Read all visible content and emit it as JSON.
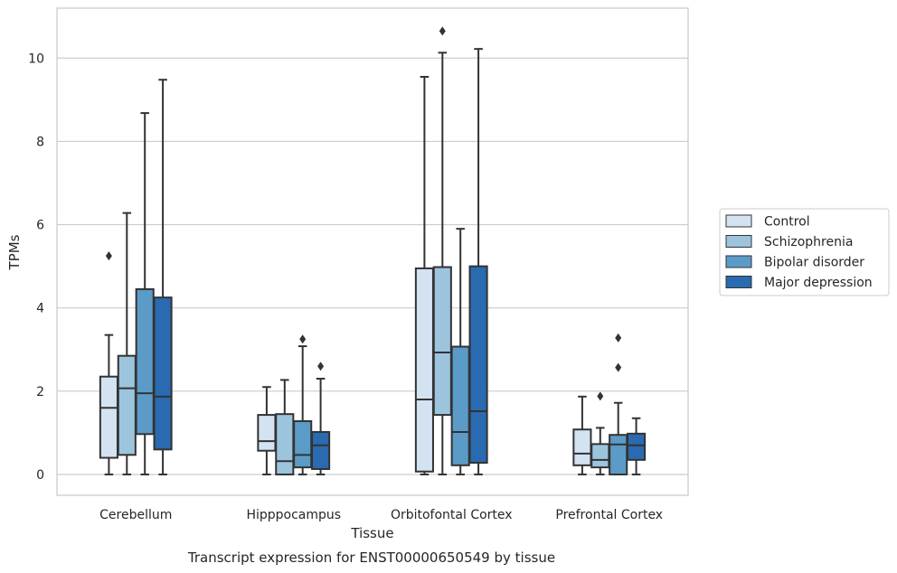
{
  "caption": "Transcript expression for ENST00000650549 by tissue",
  "chart_data": {
    "type": "box",
    "xlabel": "Tissue",
    "ylabel": "TPMs",
    "ylim": [
      -0.5,
      11.2
    ],
    "yticks": [
      0,
      2,
      4,
      6,
      8,
      10
    ],
    "grid": "horizontal",
    "legend_placement": "right",
    "categories": [
      "Cerebellum",
      "Hipppocampus",
      "Orbitofontal Cortex",
      "Prefrontal Cortex"
    ],
    "series": [
      {
        "name": "Control",
        "color": "#d4e3f2",
        "boxes": [
          {
            "whislo": 0,
            "q1": 0.4,
            "median": 1.6,
            "q3": 2.35,
            "whishi": 3.35,
            "fliers": [
              5.25
            ]
          },
          {
            "whislo": 0,
            "q1": 0.57,
            "median": 0.8,
            "q3": 1.43,
            "whishi": 2.1,
            "fliers": []
          },
          {
            "whislo": 0,
            "q1": 0.07,
            "median": 1.8,
            "q3": 4.95,
            "whishi": 9.55,
            "fliers": []
          },
          {
            "whislo": 0,
            "q1": 0.22,
            "median": 0.5,
            "q3": 1.08,
            "whishi": 1.87,
            "fliers": []
          }
        ]
      },
      {
        "name": "Schizophrenia",
        "color": "#9cc4dd",
        "boxes": [
          {
            "whislo": 0,
            "q1": 0.47,
            "median": 2.07,
            "q3": 2.85,
            "whishi": 6.28,
            "fliers": []
          },
          {
            "whislo": 0,
            "q1": 0,
            "median": 0.32,
            "q3": 1.45,
            "whishi": 2.27,
            "fliers": []
          },
          {
            "whislo": 0,
            "q1": 1.43,
            "median": 2.93,
            "q3": 4.98,
            "whishi": 10.13,
            "fliers": [
              10.65
            ]
          },
          {
            "whislo": 0,
            "q1": 0.17,
            "median": 0.35,
            "q3": 0.73,
            "whishi": 1.12,
            "fliers": [
              1.88
            ]
          }
        ]
      },
      {
        "name": "Bipolar disorder",
        "color": "#5b9bc8",
        "boxes": [
          {
            "whislo": 0,
            "q1": 0.97,
            "median": 1.95,
            "q3": 4.45,
            "whishi": 8.68,
            "fliers": []
          },
          {
            "whislo": 0,
            "q1": 0.17,
            "median": 0.47,
            "q3": 1.28,
            "whishi": 3.08,
            "fliers": [
              3.25
            ]
          },
          {
            "whislo": 0,
            "q1": 0.22,
            "median": 1.02,
            "q3": 3.07,
            "whishi": 5.9,
            "fliers": []
          },
          {
            "whislo": 0,
            "q1": 0,
            "median": 0.72,
            "q3": 0.95,
            "whishi": 1.72,
            "fliers": [
              2.57,
              3.28
            ]
          }
        ]
      },
      {
        "name": "Major depression",
        "color": "#2a6ab0",
        "boxes": [
          {
            "whislo": 0,
            "q1": 0.6,
            "median": 1.87,
            "q3": 4.25,
            "whishi": 9.48,
            "fliers": []
          },
          {
            "whislo": 0,
            "q1": 0.13,
            "median": 0.7,
            "q3": 1.02,
            "whishi": 2.3,
            "fliers": [
              2.6
            ]
          },
          {
            "whislo": 0,
            "q1": 0.28,
            "median": 1.52,
            "q3": 5.0,
            "whishi": 10.22,
            "fliers": []
          },
          {
            "whislo": 0,
            "q1": 0.35,
            "median": 0.7,
            "q3": 0.98,
            "whishi": 1.35,
            "fliers": []
          }
        ]
      }
    ]
  }
}
